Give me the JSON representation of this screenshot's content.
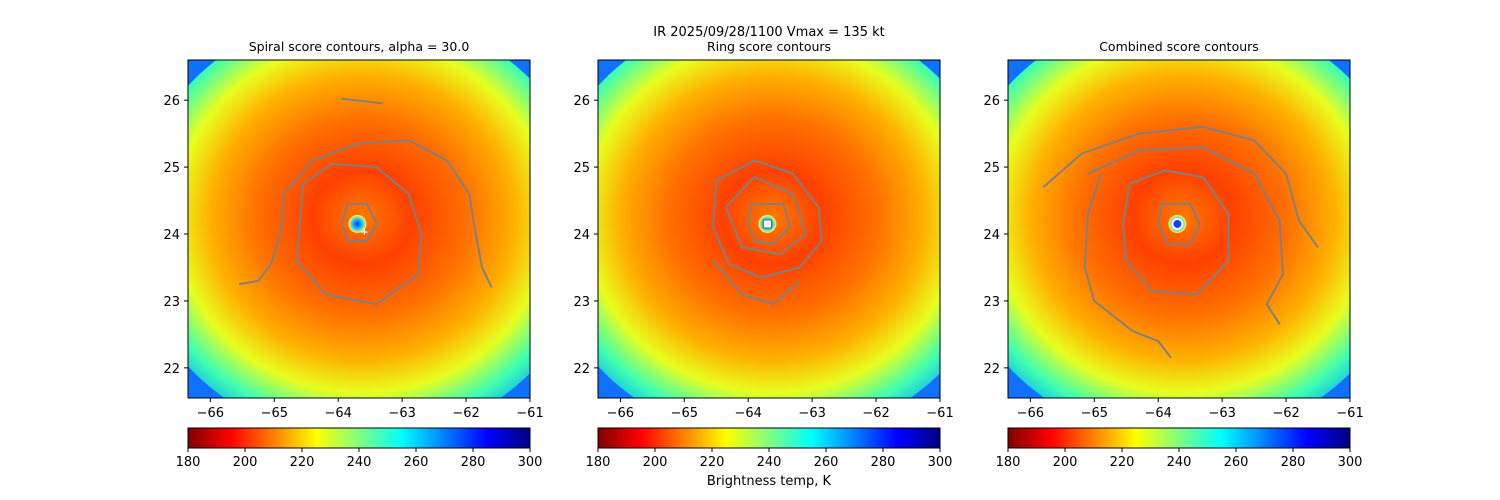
{
  "figure": {
    "suptitle_line1": "IR  2025/09/28/1100    Vmax = 135 kt",
    "colorbar_label": "Brightness temp, K"
  },
  "colormap": {
    "name": "jet_r",
    "stops": [
      "#800000",
      "#ff0000",
      "#ff8000",
      "#ffff00",
      "#80ff80",
      "#00ffff",
      "#0080ff",
      "#0000ff",
      "#000080"
    ],
    "contour_color": "#808080"
  },
  "chart_data": [
    {
      "type": "heatmap",
      "title": "Spiral score contours, alpha = 30.0",
      "x_ticks": [
        -66,
        -65,
        -64,
        -63,
        -62,
        -61
      ],
      "x_tick_labels": [
        "−66",
        "−65",
        "−64",
        "−63",
        "−62",
        "−61"
      ],
      "y_ticks": [
        22,
        23,
        24,
        25,
        26
      ],
      "y_tick_labels": [
        "22",
        "23",
        "24",
        "25",
        "26"
      ],
      "xlim": [
        -66.35,
        -61.0
      ],
      "ylim": [
        21.55,
        26.6
      ],
      "center": [
        -63.7,
        24.15
      ],
      "colorbar_ticks": [
        "180",
        "200",
        "220",
        "240",
        "260",
        "280",
        "300"
      ],
      "colorbar_range": [
        180,
        300
      ],
      "contours": [
        [
          [
            -63.95,
            26.02
          ],
          [
            -63.55,
            25.98
          ],
          [
            -63.3,
            25.95
          ]
        ],
        [
          [
            -65.55,
            23.25
          ],
          [
            -65.25,
            23.3
          ],
          [
            -65.05,
            23.55
          ],
          [
            -64.9,
            24.0
          ],
          [
            -64.85,
            24.6
          ],
          [
            -64.4,
            25.1
          ],
          [
            -63.7,
            25.35
          ],
          [
            -62.9,
            25.4
          ],
          [
            -62.3,
            25.1
          ],
          [
            -61.95,
            24.6
          ],
          [
            -61.85,
            24.0
          ],
          [
            -61.75,
            23.5
          ],
          [
            -61.6,
            23.2
          ]
        ],
        [
          [
            -64.6,
            24.15
          ],
          [
            -64.55,
            24.75
          ],
          [
            -64.1,
            25.05
          ],
          [
            -63.4,
            25.0
          ],
          [
            -62.9,
            24.6
          ],
          [
            -62.7,
            24.0
          ],
          [
            -62.75,
            23.4
          ],
          [
            -63.4,
            22.95
          ],
          [
            -64.2,
            23.1
          ],
          [
            -64.65,
            23.6
          ],
          [
            -64.6,
            24.15
          ]
        ],
        [
          [
            -63.95,
            24.15
          ],
          [
            -63.85,
            24.45
          ],
          [
            -63.55,
            24.45
          ],
          [
            -63.4,
            24.15
          ],
          [
            -63.55,
            23.9
          ],
          [
            -63.85,
            23.9
          ],
          [
            -63.95,
            24.15
          ]
        ]
      ]
    },
    {
      "type": "heatmap",
      "title": "Ring score contours",
      "x_ticks": [
        -66,
        -65,
        -64,
        -63,
        -62,
        -61
      ],
      "x_tick_labels": [
        "−66",
        "−65",
        "−64",
        "−63",
        "−62",
        "−61"
      ],
      "y_ticks": [
        22,
        23,
        24,
        25,
        26
      ],
      "y_tick_labels": [
        "22",
        "23",
        "24",
        "25",
        "26"
      ],
      "xlim": [
        -66.35,
        -61.0
      ],
      "ylim": [
        21.55,
        26.6
      ],
      "center": [
        -63.7,
        24.15
      ],
      "colorbar_ticks": [
        "180",
        "200",
        "220",
        "240",
        "260",
        "280",
        "300"
      ],
      "colorbar_range": [
        180,
        300
      ],
      "contours": [
        [
          [
            -64.5,
            24.8
          ],
          [
            -63.9,
            25.1
          ],
          [
            -63.3,
            24.9
          ],
          [
            -62.9,
            24.4
          ],
          [
            -62.85,
            23.9
          ],
          [
            -63.2,
            23.5
          ],
          [
            -63.8,
            23.35
          ],
          [
            -64.3,
            23.55
          ],
          [
            -64.55,
            24.1
          ],
          [
            -64.5,
            24.8
          ]
        ],
        [
          [
            -64.35,
            24.4
          ],
          [
            -63.9,
            24.85
          ],
          [
            -63.3,
            24.6
          ],
          [
            -63.1,
            24.0
          ],
          [
            -63.5,
            23.7
          ],
          [
            -64.1,
            23.8
          ],
          [
            -64.35,
            24.4
          ]
        ],
        [
          [
            -64.55,
            23.6
          ],
          [
            -64.1,
            23.1
          ],
          [
            -63.6,
            22.95
          ],
          [
            -63.2,
            23.3
          ]
        ],
        [
          [
            -64.0,
            24.15
          ],
          [
            -63.95,
            24.45
          ],
          [
            -63.45,
            24.45
          ],
          [
            -63.35,
            24.1
          ],
          [
            -63.6,
            23.85
          ],
          [
            -63.9,
            23.9
          ],
          [
            -64.0,
            24.15
          ]
        ]
      ]
    },
    {
      "type": "heatmap",
      "title": "Combined score contours",
      "x_ticks": [
        -66,
        -65,
        -64,
        -63,
        -62,
        -61
      ],
      "x_tick_labels": [
        "−66",
        "−65",
        "−64",
        "−63",
        "−62",
        "−61"
      ],
      "y_ticks": [
        22,
        23,
        24,
        25,
        26
      ],
      "y_tick_labels": [
        "22",
        "23",
        "24",
        "25",
        "26"
      ],
      "xlim": [
        -66.35,
        -61.0
      ],
      "ylim": [
        21.55,
        26.6
      ],
      "center": [
        -63.7,
        24.15
      ],
      "colorbar_ticks": [
        "180",
        "200",
        "220",
        "240",
        "260",
        "280",
        "300"
      ],
      "colorbar_range": [
        180,
        300
      ],
      "contours": [
        [
          [
            -65.8,
            24.7
          ],
          [
            -65.2,
            25.2
          ],
          [
            -64.3,
            25.5
          ],
          [
            -63.3,
            25.6
          ],
          [
            -62.5,
            25.4
          ],
          [
            -62.0,
            24.9
          ],
          [
            -61.8,
            24.2
          ],
          [
            -61.5,
            23.8
          ]
        ],
        [
          [
            -65.1,
            24.9
          ],
          [
            -64.3,
            25.25
          ],
          [
            -63.3,
            25.3
          ],
          [
            -62.5,
            24.9
          ],
          [
            -62.1,
            24.2
          ],
          [
            -62.05,
            23.4
          ],
          [
            -62.3,
            22.95
          ],
          [
            -62.1,
            22.65
          ]
        ],
        [
          [
            -64.9,
            24.9
          ],
          [
            -65.1,
            24.3
          ],
          [
            -65.15,
            23.5
          ],
          [
            -65.0,
            23.0
          ],
          [
            -64.4,
            22.55
          ],
          [
            -64.0,
            22.4
          ],
          [
            -63.8,
            22.15
          ]
        ],
        [
          [
            -64.55,
            24.15
          ],
          [
            -64.45,
            24.75
          ],
          [
            -63.9,
            24.95
          ],
          [
            -63.3,
            24.85
          ],
          [
            -62.9,
            24.3
          ],
          [
            -62.9,
            23.6
          ],
          [
            -63.4,
            23.1
          ],
          [
            -64.1,
            23.15
          ],
          [
            -64.5,
            23.6
          ],
          [
            -64.55,
            24.15
          ]
        ],
        [
          [
            -64.0,
            24.15
          ],
          [
            -63.95,
            24.45
          ],
          [
            -63.5,
            24.45
          ],
          [
            -63.35,
            24.15
          ],
          [
            -63.5,
            23.85
          ],
          [
            -63.85,
            23.85
          ],
          [
            -64.0,
            24.15
          ]
        ]
      ]
    }
  ]
}
